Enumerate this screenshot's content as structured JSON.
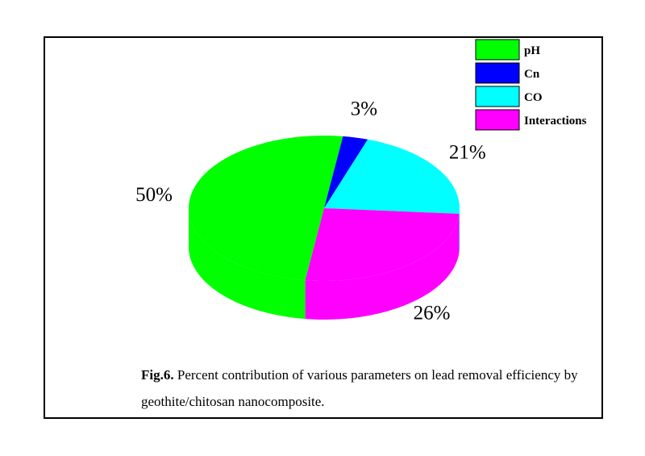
{
  "chart_data": {
    "type": "pie",
    "categories": [
      "pH",
      "Cn",
      "CO",
      "Interactions"
    ],
    "values": [
      50,
      3,
      21,
      26
    ],
    "value_labels": [
      "50%",
      "3%",
      "21%",
      "26%"
    ],
    "colors": [
      "#00ff00",
      "#0000ff",
      "#00ffff",
      "#ff00ff"
    ],
    "style": "3d",
    "legend_position": "top-right"
  },
  "caption": {
    "label": "Fig.6.",
    "text": "Percent contribution of various parameters on lead removal efficiency by geothite/chitosan nanocomposite."
  }
}
